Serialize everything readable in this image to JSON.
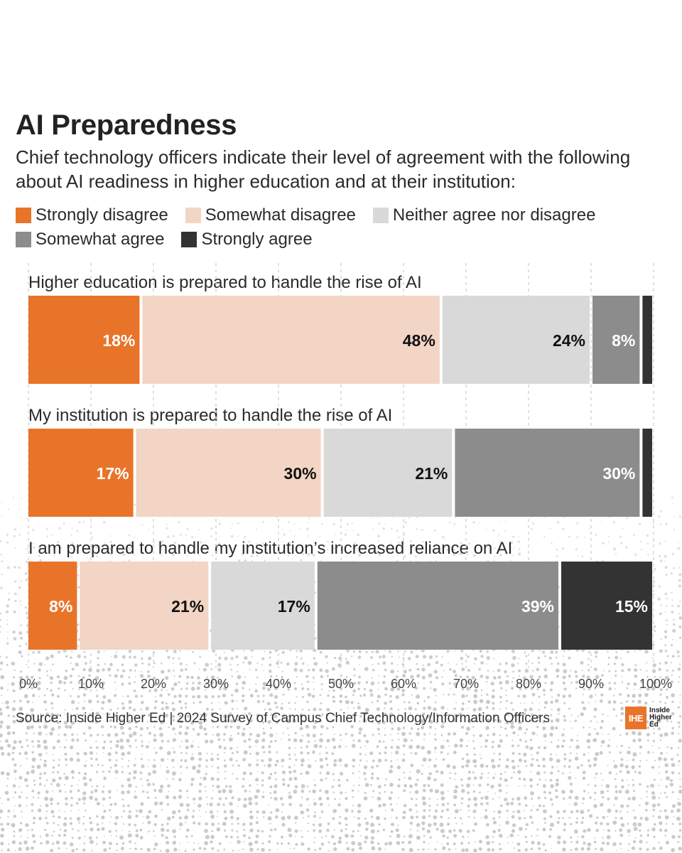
{
  "chart_data": {
    "type": "bar",
    "orientation": "horizontal-stacked",
    "title": "AI Preparedness",
    "subtitle": "Chief technology officers indicate their level of agreement with the following about AI readiness in higher education and at their institution:",
    "legend_placement": "top-left",
    "legend": [
      {
        "name": "Strongly disagree",
        "color": "#e8742a"
      },
      {
        "name": "Somewhat disagree",
        "color": "#f2d5c4"
      },
      {
        "name": "Neither agree nor disagree",
        "color": "#d9d9d9"
      },
      {
        "name": "Somewhat agree",
        "color": "#8c8c8c"
      },
      {
        "name": "Strongly agree",
        "color": "#333333"
      }
    ],
    "categories": [
      "Higher education is prepared to handle the rise of AI",
      "My institution is prepared to handle the rise of AI",
      "I am prepared to handle my institution’s increased reliance on AI"
    ],
    "series": [
      {
        "name": "Strongly disagree",
        "values": [
          18,
          17,
          8
        ],
        "labels": [
          "18%",
          "17%",
          "8%"
        ]
      },
      {
        "name": "Somewhat disagree",
        "values": [
          48,
          30,
          21
        ],
        "labels": [
          "48%",
          "30%",
          "21%"
        ]
      },
      {
        "name": "Neither agree nor disagree",
        "values": [
          24,
          21,
          17
        ],
        "labels": [
          "24%",
          "21%",
          "17%"
        ]
      },
      {
        "name": "Somewhat agree",
        "values": [
          8,
          30,
          39
        ],
        "labels": [
          "8%",
          "30%",
          "39%"
        ]
      },
      {
        "name": "Strongly agree",
        "values": [
          2,
          2,
          15
        ],
        "labels": [
          "",
          "",
          "15%"
        ]
      }
    ],
    "xlim": [
      0,
      100
    ],
    "x_ticks": [
      "0%",
      "10%",
      "20%",
      "30%",
      "40%",
      "50%",
      "60%",
      "70%",
      "80%",
      "90%",
      "100%"
    ],
    "grid": true,
    "source": "Source: Inside Higher Ed | 2024 Survey of Campus Chief Technology/Information Officers"
  },
  "logo": {
    "mark": "IHE",
    "lines": [
      "Inside",
      "Higher",
      "Ed"
    ]
  }
}
